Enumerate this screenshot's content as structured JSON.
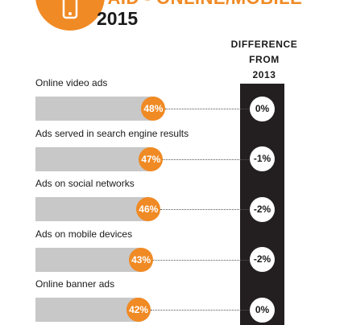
{
  "header": {
    "title": "PAID - ONLINE/MOBILE",
    "year": "2015",
    "icon": "mobile-phone-icon",
    "accent_color": "#f08a24"
  },
  "diff_header": "DIFFERENCE\nFROM\n2013",
  "chart_data": {
    "type": "bar",
    "orientation": "horizontal",
    "categories": [
      "Online video ads",
      "Ads served in search engine results",
      "Ads on social networks",
      "Ads on mobile devices",
      "Online banner ads"
    ],
    "values": [
      48,
      47,
      46,
      43,
      42
    ],
    "value_labels": [
      "48%",
      "47%",
      "46%",
      "43%",
      "42%"
    ],
    "difference_from_2013": [
      "0%",
      "-1%",
      "-2%",
      "-2%",
      "0%"
    ],
    "xlim": [
      0,
      100
    ],
    "colors": {
      "bar": "#c8c8c8",
      "badge": "#f08a24",
      "difference_column": "#231f20"
    }
  }
}
